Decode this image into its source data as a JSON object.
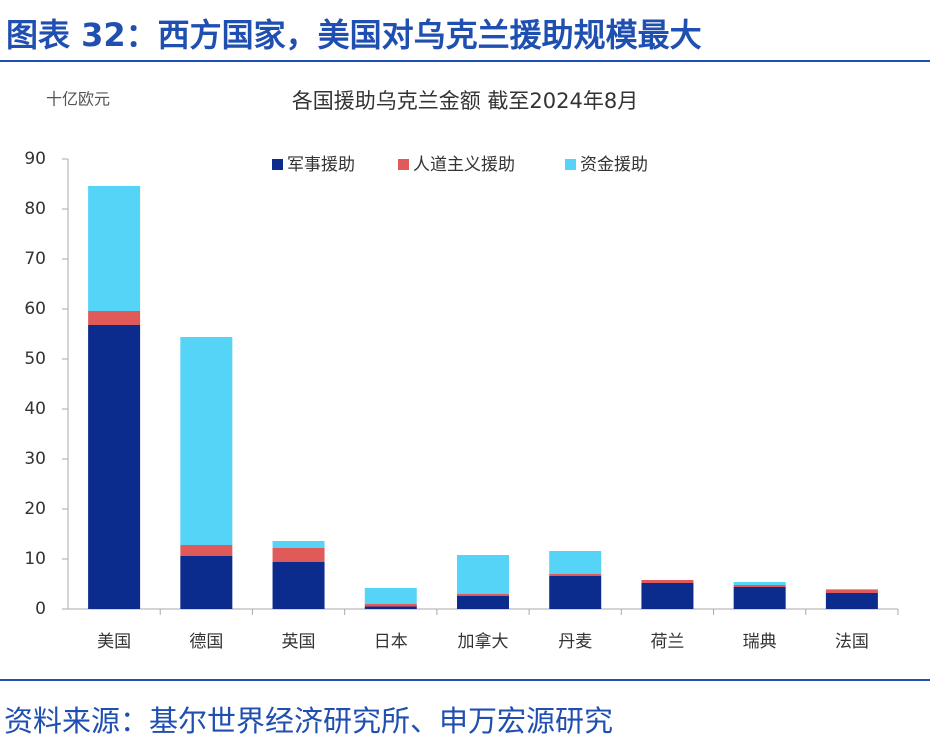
{
  "header": {
    "title": "图表 32：西方国家，美国对乌克兰援助规模最大"
  },
  "chart_data": {
    "type": "bar",
    "stacked": true,
    "title": "各国援助乌克兰金额 截至2024年8月",
    "y_label": "十亿欧元",
    "categories": [
      "美国",
      "德国",
      "英国",
      "日本",
      "加拿大",
      "丹麦",
      "荷兰",
      "瑞典",
      "法国"
    ],
    "series": [
      {
        "name": "军事援助",
        "color": "#0b2c8c",
        "values": [
          56.8,
          10.6,
          9.4,
          0.5,
          2.6,
          6.6,
          5.2,
          4.4,
          3.2
        ]
      },
      {
        "name": "人道主义援助",
        "color": "#e05a5a",
        "values": [
          2.8,
          2.2,
          2.8,
          0.5,
          0.4,
          0.4,
          0.6,
          0.4,
          0.6
        ]
      },
      {
        "name": "资金援助",
        "color": "#55d4f8",
        "values": [
          25.0,
          41.6,
          1.4,
          3.2,
          7.8,
          4.6,
          0,
          0.6,
          0.2
        ]
      }
    ],
    "ylim": [
      0,
      90
    ],
    "yticks": [
      0,
      10,
      20,
      30,
      40,
      50,
      60,
      70,
      80,
      90
    ],
    "grid": false,
    "legend": "top"
  },
  "footer": {
    "source": "资料来源：基尔世界经济研究所、申万宏源研究"
  }
}
